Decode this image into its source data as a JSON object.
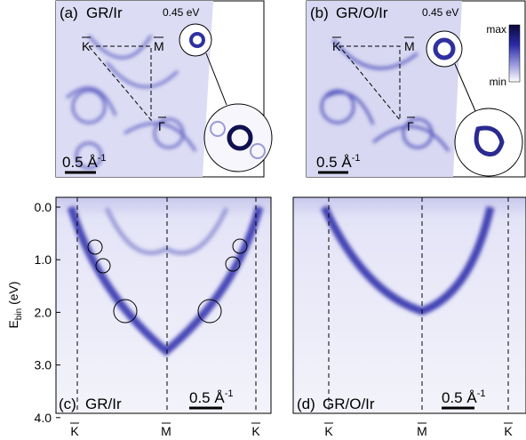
{
  "panels": [
    {
      "label": "(a)",
      "sample": "GR/Ir",
      "energy": "0.45 eV",
      "k": "K",
      "m": "M",
      "gamma": "Γ",
      "scale": "0.5 Å",
      "scale_exp": "-1"
    },
    {
      "label": "(b)",
      "sample": "GR/O/Ir",
      "energy": "0.45 eV",
      "k": "K",
      "m": "M",
      "gamma": "Γ",
      "scale": "0.5 Å",
      "scale_exp": "-1",
      "colorbar_max": "max",
      "colorbar_min": "min"
    },
    {
      "label": "(c)",
      "sample": "GR/Ir",
      "scale": "0.5 Å",
      "scale_exp": "-1",
      "y_label": "E",
      "y_label_sub": "bin",
      "y_label_unit": " (eV)",
      "yticks": [
        {
          "value": 0,
          "label": "0.0"
        },
        {
          "value": 1,
          "label": "1.0"
        },
        {
          "value": 2,
          "label": "2.0"
        },
        {
          "value": 3,
          "label": "3.0"
        },
        {
          "value": 4,
          "label": "4.0"
        }
      ],
      "xticks": [
        "K",
        "M",
        "K"
      ]
    },
    {
      "label": "(d)",
      "sample": "GR/O/Ir",
      "scale": "0.5 Å",
      "scale_exp": "-1",
      "xticks": [
        "K",
        "M",
        "K"
      ]
    }
  ]
}
